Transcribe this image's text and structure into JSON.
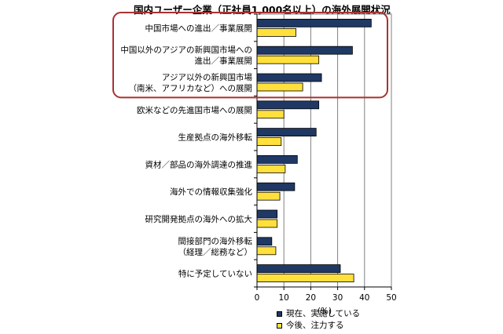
{
  "chart_data": {
    "type": "bar",
    "orientation": "horizontal",
    "title": "国内ユーザー企業（正社員1,000名以上）の海外展開状況",
    "xlabel": "(%)",
    "ylabel": "",
    "xlim": [
      0,
      50
    ],
    "xticks": [
      0,
      10,
      20,
      30,
      40,
      50
    ],
    "grid": true,
    "legend_position": "bottom",
    "categories": [
      [
        "中国市場への進出／事業展開"
      ],
      [
        "中国以外のアジアの新興国市場への",
        "進出／事業展開"
      ],
      [
        "アジア以外の新興国市場",
        "（南米、アフリカなど）への展開"
      ],
      [
        "欧米などの先進国市場への展開"
      ],
      [
        "生産拠点の海外移転"
      ],
      [
        "資材／部品の海外調達の推進"
      ],
      [
        "海外での情報収集強化"
      ],
      [
        "研究開発拠点の海外への拡大"
      ],
      [
        "間接部門の海外移転",
        "（経理／総務など）"
      ],
      [
        "特に予定していない"
      ]
    ],
    "series": [
      {
        "name": "現在、実施している",
        "color": "#1f3864",
        "values": [
          42.5,
          35.5,
          24,
          23,
          22,
          15,
          14,
          7.5,
          5.5,
          31
        ]
      },
      {
        "name": "今後、注力する",
        "color": "#ffe03c",
        "values": [
          14.5,
          23,
          17,
          10,
          9,
          10.5,
          8.5,
          7.5,
          7,
          36
        ]
      }
    ],
    "highlight": {
      "categories": [
        0,
        1,
        2
      ],
      "color": "#a83232"
    }
  }
}
